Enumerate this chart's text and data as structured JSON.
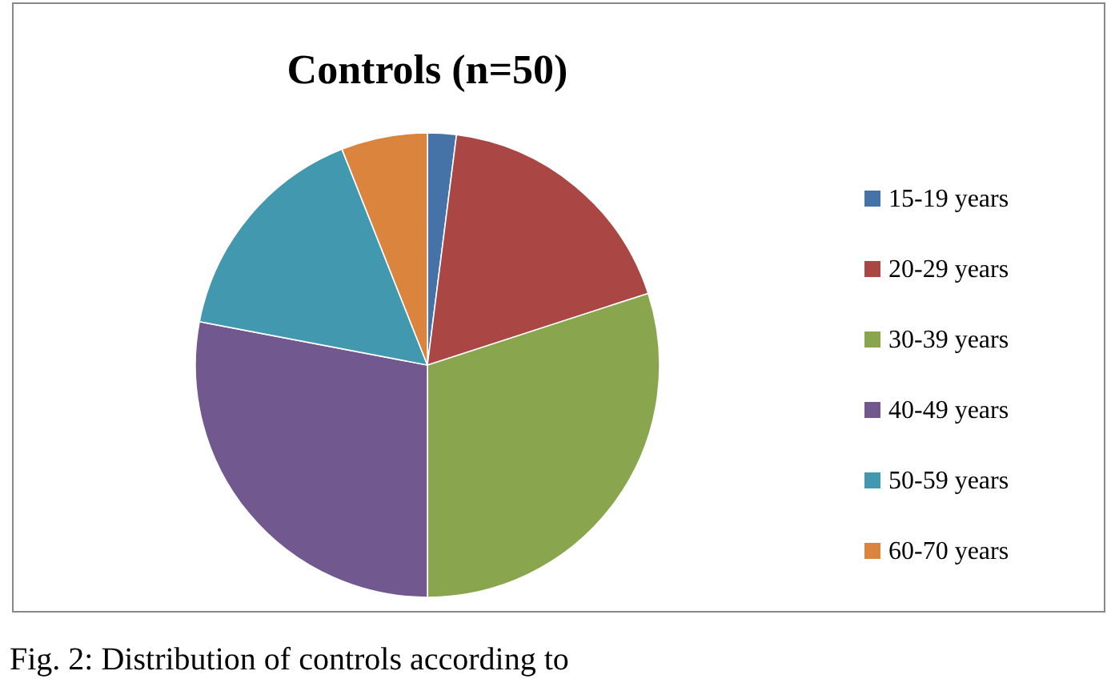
{
  "chart_data": {
    "type": "pie",
    "title": "Controls (n=50)",
    "categories": [
      "15-19 years",
      "20-29 years",
      "30-39 years",
      "40-49 years",
      "50-59 years",
      "60-70 years"
    ],
    "values": [
      2,
      18,
      30,
      28,
      16,
      6
    ],
    "colors": [
      "#4572a7",
      "#aa4643",
      "#89a54e",
      "#71588f",
      "#4198af",
      "#db843d"
    ],
    "legend": "right",
    "annotations": [
      "Fig. 2: Distribution of controls according to"
    ]
  }
}
